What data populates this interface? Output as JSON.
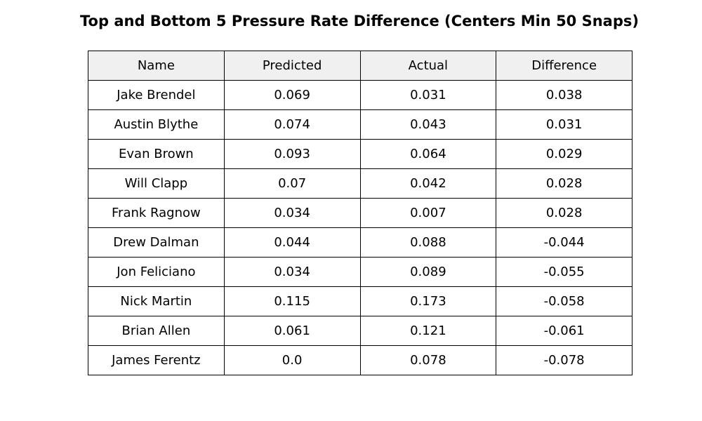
{
  "chart_data": {
    "type": "table",
    "title": "Top and Bottom 5 Pressure Rate Difference (Centers Min 50 Snaps)",
    "columns": [
      "Name",
      "Predicted",
      "Actual",
      "Difference"
    ],
    "rows": [
      [
        "Jake Brendel",
        "0.069",
        "0.031",
        "0.038"
      ],
      [
        "Austin Blythe",
        "0.074",
        "0.043",
        "0.031"
      ],
      [
        "Evan Brown",
        "0.093",
        "0.064",
        "0.029"
      ],
      [
        "Will Clapp",
        "0.07",
        "0.042",
        "0.028"
      ],
      [
        "Frank Ragnow",
        "0.034",
        "0.007",
        "0.028"
      ],
      [
        "Drew Dalman",
        "0.044",
        "0.088",
        "-0.044"
      ],
      [
        "Jon Feliciano",
        "0.034",
        "0.089",
        "-0.055"
      ],
      [
        "Nick Martin",
        "0.115",
        "0.173",
        "-0.058"
      ],
      [
        "Brian Allen",
        "0.061",
        "0.121",
        "-0.061"
      ],
      [
        "James Ferentz",
        "0.0",
        "0.078",
        "-0.078"
      ]
    ],
    "header_background": "#f0f0f0",
    "border_color": "#000000"
  }
}
